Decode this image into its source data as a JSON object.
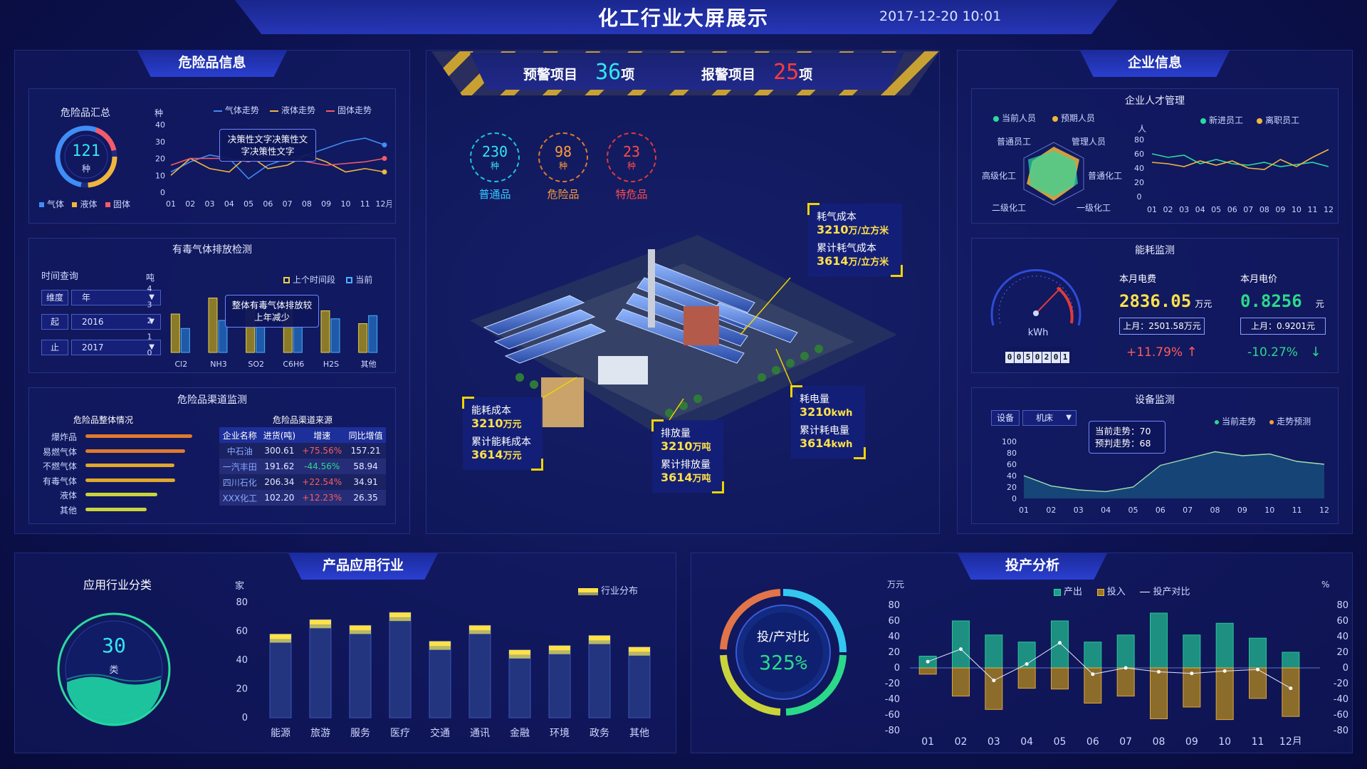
{
  "header": {
    "title": "化工行业大屏展示",
    "datetime": "2017-12-20  10:01"
  },
  "colors": {
    "gas": "#3f8df5",
    "liquid": "#f0b63c",
    "solid": "#f25c6a",
    "cyan": "#33e6f0",
    "yellow": "#ffe14a"
  },
  "hazard": {
    "title": "危险品信息",
    "summary": {
      "title": "危险品汇总",
      "count": "121",
      "unit": "种",
      "legend": [
        "气体",
        "液体",
        "固体"
      ]
    },
    "trend": {
      "unit": "种",
      "legend": [
        "气体走势",
        "液体走势",
        "固体走势"
      ],
      "tooltip": "决策性文字决策性文字决策性文字",
      "yticks": [
        "40",
        "30",
        "20",
        "10",
        "0"
      ],
      "xticks": [
        "01",
        "02",
        "03",
        "04",
        "05",
        "06",
        "07",
        "08",
        "09",
        "10",
        "11",
        "12月"
      ]
    },
    "toxic": {
      "title": "有毒气体排放检测",
      "query_label": "时间查询",
      "rows": [
        {
          "label": "维度",
          "value": "年"
        },
        {
          "label": "起",
          "value": "2016"
        },
        {
          "label": "止",
          "value": "2017"
        }
      ],
      "unit": "吨",
      "legend": [
        "上个时间段",
        "当前"
      ],
      "tooltip": "整体有毒气体排放较上年减少",
      "yticks": [
        "4",
        "3",
        "2",
        "1",
        "0"
      ],
      "categories": [
        "Cl2",
        "NH3",
        "SO2",
        "C6H6",
        "H2S",
        "其他"
      ]
    },
    "channel": {
      "title": "危险品渠道监测",
      "overall_title": "危险品整体情况",
      "overall": [
        "爆炸品",
        "易燃气体",
        "不燃气体",
        "有毒气体",
        "液体",
        "其他"
      ],
      "source_title": "危险品渠道来源",
      "headers": [
        "企业名称",
        "进货(吨)",
        "增速",
        "同比增值"
      ],
      "rows": [
        [
          "中石油",
          "300.61",
          "+75.56%",
          "157.21"
        ],
        [
          "一汽丰田",
          "191.62",
          "-44.56%",
          "58.94"
        ],
        [
          "四川石化",
          "206.34",
          "+22.54%",
          "34.91"
        ],
        [
          "XXX化工",
          "102.20",
          "+12.23%",
          "26.35"
        ]
      ]
    }
  },
  "center": {
    "warning_label": "预警项目",
    "warning_value": "36",
    "warning_unit": "项",
    "alarm_label": "报警项目",
    "alarm_value": "25",
    "alarm_unit": "项",
    "circles": [
      {
        "value": "230",
        "unit": "种",
        "label": "普通品"
      },
      {
        "value": "98",
        "unit": "种",
        "label": "危险品"
      },
      {
        "value": "23",
        "unit": "种",
        "label": "特危品"
      }
    ],
    "callouts": {
      "gas": {
        "l1": "耗气成本",
        "v1": "3210",
        "u1": "万/立方米",
        "l2": "累计耗气成本",
        "v2": "3614",
        "u2": "万/立方米"
      },
      "energy": {
        "l1": "能耗成本",
        "v1": "3210",
        "u1": "万元",
        "l2": "累计能耗成本",
        "v2": "3614",
        "u2": "万元"
      },
      "emission": {
        "l1": "排放量",
        "v1": "3210",
        "u1": "万吨",
        "l2": "累计排放量",
        "v2": "3614",
        "u2": "万吨"
      },
      "power": {
        "l1": "耗电量",
        "v1": "3210",
        "u1": "kwh",
        "l2": "累计耗电量",
        "v2": "3614",
        "u2": "kwh"
      }
    }
  },
  "enterprise": {
    "title": "企业信息",
    "talent": {
      "title": "企业人才管理",
      "legend_left": [
        "当前人员",
        "预期人员"
      ],
      "radar_labels": [
        "普通员工",
        "管理人员",
        "普通化工",
        "一级化工",
        "二级化工",
        "高级化工"
      ],
      "legend_right": [
        "新进员工",
        "离职员工"
      ],
      "unit": "人",
      "yticks": [
        "80",
        "60",
        "40",
        "20",
        "0"
      ],
      "xticks": [
        "01",
        "02",
        "03",
        "04",
        "05",
        "06",
        "07",
        "08",
        "09",
        "10",
        "11",
        "12"
      ]
    },
    "energy": {
      "title": "能耗监测",
      "gauge_unit": "kWh",
      "counter": "0050201",
      "elec_fee_label": "本月电费",
      "elec_fee": "2836.05",
      "elec_fee_unit": "万元",
      "elec_fee_last": "上月：2501.58万元",
      "elec_fee_change": "+11.79%",
      "elec_price_label": "本月电价",
      "elec_price": "0.8256",
      "elec_price_unit": "元",
      "elec_price_last": "上月：0.9201元",
      "elec_price_change": "-10.27%"
    },
    "device": {
      "title": "设备监测",
      "label": "设备",
      "value": "机床",
      "legend": [
        "当前走势",
        "走势预测"
      ],
      "tooltip_l1": "当前走势：70",
      "tooltip_l2": "预判走势：68",
      "yticks": [
        "100",
        "80",
        "60",
        "40",
        "20",
        "0"
      ],
      "xticks": [
        "01",
        "02",
        "03",
        "04",
        "05",
        "06",
        "07",
        "08",
        "09",
        "10",
        "11",
        "12"
      ]
    }
  },
  "industry": {
    "title": "产品应用行业",
    "class_title": "应用行业分类",
    "class_value": "30",
    "class_unit": "类",
    "unit": "家",
    "legend": "行业分布",
    "yticks": [
      "80",
      "60",
      "40",
      "20",
      "0"
    ]
  },
  "investment": {
    "title": "投产分析",
    "ratio_label": "投/产对比",
    "ratio_value": "325%",
    "left_unit": "万元",
    "right_unit": "%",
    "legend": [
      "产出",
      "投入",
      "投产对比"
    ],
    "yticks": [
      "80",
      "60",
      "40",
      "20",
      "0",
      "-20",
      "-40",
      "-60",
      "-80"
    ]
  },
  "chart_data": [
    {
      "type": "line",
      "title": "",
      "x": [
        "01",
        "02",
        "03",
        "04",
        "05",
        "06",
        "07",
        "08",
        "09",
        "10",
        "11",
        "12月"
      ],
      "ylim": [
        0,
        40
      ],
      "series": [
        {
          "name": "气体走势",
          "values": [
            12,
            18,
            22,
            20,
            8,
            16,
            20,
            22,
            26,
            30,
            32,
            28
          ]
        },
        {
          "name": "液体走势",
          "values": [
            10,
            20,
            14,
            12,
            22,
            14,
            16,
            22,
            18,
            12,
            14,
            12
          ]
        },
        {
          "name": "固体走势",
          "values": [
            16,
            20,
            20,
            20,
            18,
            22,
            21,
            18,
            16,
            17,
            18,
            20
          ]
        }
      ]
    },
    {
      "type": "bar",
      "title": "有毒气体排放检测",
      "categories": [
        "Cl2",
        "NH3",
        "SO2",
        "C6H6",
        "H2S",
        "其他"
      ],
      "ylim": [
        0,
        4
      ],
      "series": [
        {
          "name": "上个时间段",
          "values": [
            2.4,
            3.4,
            2.8,
            2.8,
            2.6,
            1.8
          ]
        },
        {
          "name": "当前",
          "values": [
            1.5,
            2.0,
            1.6,
            1.6,
            2.1,
            2.3
          ]
        }
      ]
    },
    {
      "type": "bar",
      "title": "危险品整体情况",
      "categories": [
        "爆炸品",
        "易燃气体",
        "不燃气体",
        "有毒气体",
        "液体",
        "其他"
      ],
      "values": [
        100,
        93,
        83,
        84,
        67,
        57
      ]
    },
    {
      "type": "line",
      "title": "",
      "x": [
        "01",
        "02",
        "03",
        "04",
        "05",
        "06",
        "07",
        "08",
        "09",
        "10",
        "11",
        "12"
      ],
      "ylim": [
        0,
        80
      ],
      "series": [
        {
          "name": "新进员工",
          "values": [
            60,
            55,
            58,
            46,
            52,
            46,
            44,
            48,
            42,
            45,
            48,
            42
          ]
        },
        {
          "name": "离职员工",
          "values": [
            48,
            46,
            42,
            50,
            44,
            50,
            40,
            38,
            52,
            42,
            55,
            66
          ]
        }
      ]
    },
    {
      "type": "area",
      "title": "设备监测",
      "x": [
        "01",
        "02",
        "03",
        "04",
        "05",
        "06",
        "07",
        "08",
        "09",
        "10",
        "11",
        "12"
      ],
      "ylim": [
        0,
        100
      ],
      "series": [
        {
          "name": "当前走势",
          "values": [
            40,
            22,
            15,
            12,
            20,
            58,
            70,
            82,
            75,
            78,
            65,
            60
          ]
        }
      ]
    },
    {
      "type": "bar",
      "title": "产品应用行业",
      "categories": [
        "能源",
        "旅游",
        "服务",
        "医疗",
        "交通",
        "通讯",
        "金融",
        "环境",
        "政务",
        "其他"
      ],
      "ylim": [
        0,
        80
      ],
      "series": [
        {
          "name": "行业分布",
          "values": [
            58,
            68,
            64,
            73,
            53,
            64,
            47,
            50,
            57,
            49
          ]
        }
      ]
    },
    {
      "type": "bar",
      "title": "投产分析",
      "categories": [
        "01",
        "02",
        "03",
        "04",
        "05",
        "06",
        "07",
        "08",
        "09",
        "10",
        "11",
        "12月"
      ],
      "ylim": [
        -80,
        80
      ],
      "series": [
        {
          "name": "产出",
          "values": [
            15,
            60,
            42,
            33,
            60,
            33,
            42,
            70,
            42,
            57,
            38,
            20
          ]
        },
        {
          "name": "投入",
          "values": [
            -8,
            -36,
            -53,
            -26,
            -27,
            -45,
            -36,
            -65,
            -50,
            -66,
            -39,
            -62
          ]
        },
        {
          "name": "投产对比",
          "values": [
            8,
            24,
            -16,
            5,
            32,
            -8,
            0,
            -5,
            -7,
            -4,
            -2,
            -26
          ]
        }
      ]
    }
  ]
}
